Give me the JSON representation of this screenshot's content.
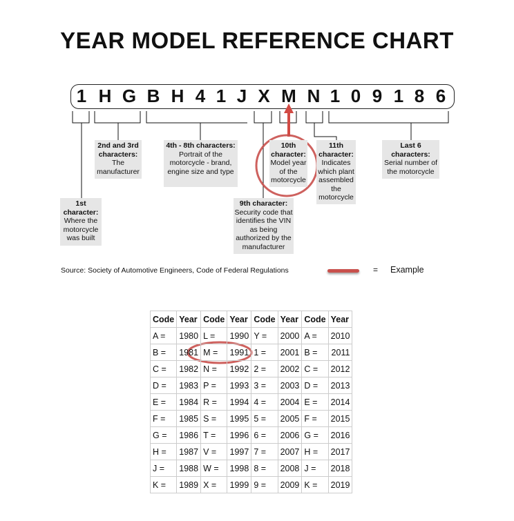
{
  "title": "YEAR MODEL REFERENCE CHART",
  "vin": [
    "1",
    "H",
    "G",
    "B",
    "H",
    "4",
    "1",
    "J",
    "X",
    "M",
    "N",
    "1",
    "0",
    "9",
    "1",
    "8",
    "6"
  ],
  "labels": {
    "first": {
      "head": "1st character:",
      "body": "Where the motorcycle was built"
    },
    "second_third": {
      "head": "2nd and 3rd characters:",
      "body": "The manufacturer"
    },
    "fourth_eighth": {
      "head": "4th - 8th characters:",
      "body": "Portrait of the motorcycle - brand, engine size and type"
    },
    "ninth": {
      "head": "9th character:",
      "body": "Security code that identifies the VIN as being authorized by the manufacturer"
    },
    "tenth": {
      "head": "10th character:",
      "body": "Model year of the motorcycle"
    },
    "eleventh": {
      "head": "11th character:",
      "body": "Indicates which plant assembled the motorcycle"
    },
    "last_six": {
      "head": "Last 6 characters:",
      "body": "Serial number of the motorcycle"
    }
  },
  "source": "Source:  Society of Automotive Engineers, Code of Federal Regulations",
  "legend": {
    "equals": "=",
    "label": "Example",
    "color": "#c9504c"
  },
  "table": {
    "headers": [
      "Code",
      "Year",
      "Code",
      "Year",
      "Code",
      "Year",
      "Code",
      "Year"
    ],
    "rows": [
      [
        "A =",
        "1980",
        "L =",
        "1990",
        "Y =",
        "2000",
        "A =",
        "2010"
      ],
      [
        "B =",
        "1981",
        "M =",
        "1991",
        "1 =",
        "2001",
        "B =",
        "2011"
      ],
      [
        "C =",
        "1982",
        "N =",
        "1992",
        "2 =",
        "2002",
        "C =",
        "2012"
      ],
      [
        "D =",
        "1983",
        "P =",
        "1993",
        "3 =",
        "2003",
        "D =",
        "2013"
      ],
      [
        "E =",
        "1984",
        "R =",
        "1994",
        "4 =",
        "2004",
        "E =",
        "2014"
      ],
      [
        "F =",
        "1985",
        "S =",
        "1995",
        "5 =",
        "2005",
        "F =",
        "2015"
      ],
      [
        "G =",
        "1986",
        "T =",
        "1996",
        "6 =",
        "2006",
        "G =",
        "2016"
      ],
      [
        "H =",
        "1987",
        "V =",
        "1997",
        "7 =",
        "2007",
        "H =",
        "2017"
      ],
      [
        "J =",
        "1988",
        "W =",
        "1998",
        "8 =",
        "2008",
        "J =",
        "2018"
      ],
      [
        "K =",
        "1989",
        "X =",
        "1999",
        "9 =",
        "2009",
        "K =",
        "2019"
      ]
    ]
  }
}
